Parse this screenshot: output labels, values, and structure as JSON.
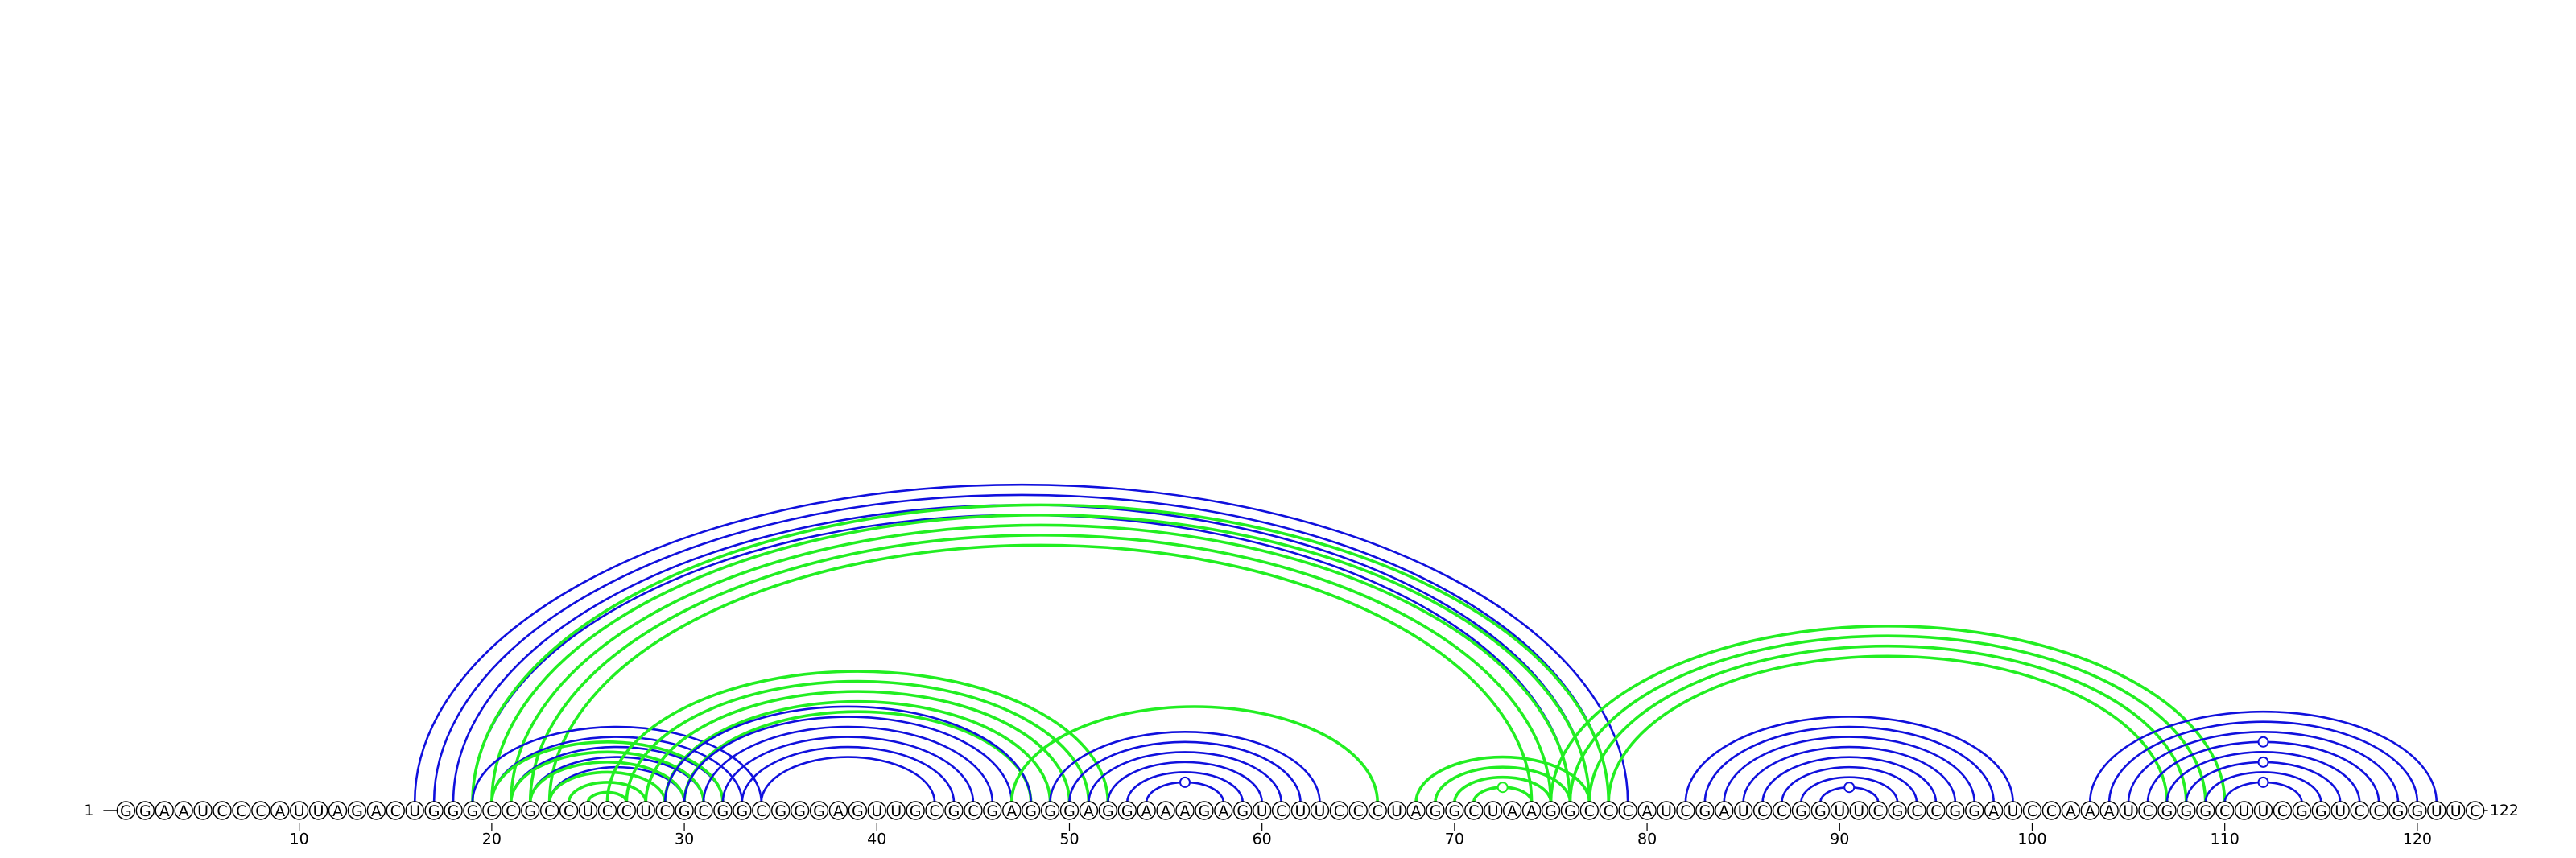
{
  "sequence": "GGAAUCCCAUUAGACUGGGCCGCCUCCUCGCGGCGGGAGUUGCGCGAGGGAGGAAAGAGUCUUCCCUAGGCUAAGGCCCAUCGAUCCGGUUCGCCGGAUCCAAAUCGGGCUUCGGUCCGGUUC",
  "start_label": "1",
  "end_label": "122",
  "ticks": [
    10,
    20,
    30,
    40,
    50,
    60,
    70,
    80,
    90,
    100,
    110,
    120
  ],
  "colors": {
    "blue": "#1010dd",
    "green": "#22ee22"
  },
  "helices": [
    {
      "color": "blue",
      "i": 16,
      "j": 79,
      "n": 4
    },
    {
      "color": "green",
      "i": 19,
      "j": 78,
      "n": 5
    },
    {
      "color": "blue",
      "i": 19,
      "j": 34,
      "n": 5
    },
    {
      "color": "green",
      "i": 20,
      "j": 32,
      "n": 6
    },
    {
      "color": "green",
      "i": 26,
      "j": 52,
      "n": 5
    },
    {
      "color": "blue",
      "i": 29,
      "j": 48,
      "n": 6
    },
    {
      "color": "green",
      "i": 47,
      "j": 66,
      "n": 1
    },
    {
      "color": "blue",
      "i": 49,
      "j": 63,
      "n": 6
    },
    {
      "color": "green",
      "i": 68,
      "j": 77,
      "n": 4
    },
    {
      "color": "green",
      "i": 75,
      "j": 110,
      "n": 4
    },
    {
      "color": "blue",
      "i": 82,
      "j": 99,
      "n": 8
    },
    {
      "color": "blue",
      "i": 103,
      "j": 121,
      "n": 8
    }
  ],
  "loop_markers": [
    {
      "color": "blue",
      "pos": 56.5
    },
    {
      "color": "blue",
      "pos": 90.5
    },
    {
      "color": "green",
      "pos": 72.5
    },
    {
      "color": "blue",
      "pos": 111.5
    },
    {
      "color": "blue",
      "pos": 111.5
    },
    {
      "color": "blue",
      "pos": 111.5
    }
  ]
}
